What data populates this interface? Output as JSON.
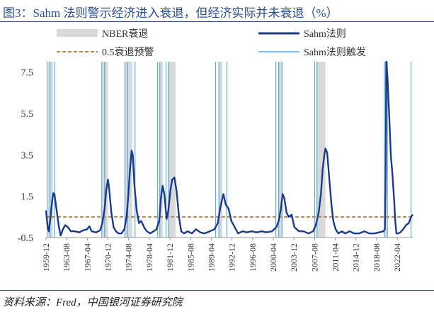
{
  "title": "图3：Sahm 法则警示经济进入衰退，但经济实际并未衰退（%）",
  "source": "资料来源：Fred，中国银河证券研究院",
  "colors": {
    "title": "#2b4f91",
    "recession_band": "#d9d9d9",
    "sahm_line": "#1a3a8c",
    "threshold": "#b08a50",
    "trigger": "#5aaee0",
    "axis": "#999999"
  },
  "chart_data": {
    "type": "line",
    "x_range": [
      1959.9,
      2025.0
    ],
    "ylim": [
      -0.5,
      8.0
    ],
    "yticks": [
      -0.5,
      1.5,
      3.5,
      5.5,
      7.5
    ],
    "ytick_labels": [
      "-0.5",
      "1.5",
      "3.5",
      "5.5",
      "7.5"
    ],
    "xtick_labels": [
      "1959-12",
      "1963-08",
      "1967-04",
      "1970-12",
      "1974-08",
      "1978-04",
      "1981-12",
      "1985-08",
      "1989-04",
      "1992-12",
      "1996-08",
      "2000-04",
      "2003-12",
      "2007-08",
      "2011-04",
      "2014-12",
      "2018-08",
      "2022-04"
    ],
    "legend": [
      {
        "key": "nber",
        "label": "NBER衰退"
      },
      {
        "key": "sahm",
        "label": "Sahm法则"
      },
      {
        "key": "threshold",
        "label": "0.5衰退预警"
      },
      {
        "key": "trigger",
        "label": "Sahm法则触发"
      }
    ],
    "threshold": 0.5,
    "recessions": [
      [
        1960.3,
        1961.1
      ],
      [
        1969.9,
        1970.9
      ],
      [
        1973.9,
        1975.2
      ],
      [
        1980.0,
        1980.6
      ],
      [
        1981.5,
        1982.9
      ],
      [
        1990.5,
        1991.2
      ],
      [
        2001.2,
        2001.9
      ],
      [
        2007.9,
        2009.5
      ],
      [
        2020.1,
        2020.4
      ]
    ],
    "triggers": [
      1960.1,
      1960.6,
      1961.4,
      1969.8,
      1970.3,
      1973.9,
      1974.4,
      1975.7,
      1979.7,
      1980.1,
      1981.2,
      1981.7,
      1990.0,
      1990.6,
      1992.0,
      2000.7,
      2001.2,
      2001.8,
      2007.6,
      2008.0,
      2020.0,
      2020.5,
      2024.7
    ],
    "series": [
      {
        "name": "Sahm法则",
        "points": [
          [
            1959.9,
            0.8
          ],
          [
            1960.2,
            0.0
          ],
          [
            1960.4,
            -0.2
          ],
          [
            1960.7,
            0.5
          ],
          [
            1961.0,
            1.3
          ],
          [
            1961.2,
            1.65
          ],
          [
            1961.4,
            1.6
          ],
          [
            1961.8,
            0.8
          ],
          [
            1962.2,
            0.0
          ],
          [
            1962.5,
            -0.4
          ],
          [
            1962.9,
            -0.1
          ],
          [
            1963.3,
            0.1
          ],
          [
            1963.8,
            0.0
          ],
          [
            1964.3,
            -0.2
          ],
          [
            1965.0,
            -0.2
          ],
          [
            1965.8,
            -0.25
          ],
          [
            1966.5,
            -0.15
          ],
          [
            1967.2,
            -0.1
          ],
          [
            1967.6,
            0.05
          ],
          [
            1968.0,
            -0.2
          ],
          [
            1968.8,
            -0.25
          ],
          [
            1969.5,
            -0.15
          ],
          [
            1969.9,
            0.2
          ],
          [
            1970.3,
            0.9
          ],
          [
            1970.6,
            1.8
          ],
          [
            1970.9,
            2.3
          ],
          [
            1971.1,
            1.9
          ],
          [
            1971.5,
            0.7
          ],
          [
            1971.9,
            0.0
          ],
          [
            1972.3,
            -0.2
          ],
          [
            1972.8,
            -0.3
          ],
          [
            1973.3,
            -0.3
          ],
          [
            1973.8,
            -0.1
          ],
          [
            1974.2,
            0.5
          ],
          [
            1974.5,
            1.5
          ],
          [
            1974.8,
            2.8
          ],
          [
            1975.1,
            3.7
          ],
          [
            1975.3,
            3.5
          ],
          [
            1975.6,
            2.0
          ],
          [
            1976.0,
            0.8
          ],
          [
            1976.4,
            0.2
          ],
          [
            1976.8,
            0.3
          ],
          [
            1977.3,
            0.0
          ],
          [
            1977.8,
            -0.2
          ],
          [
            1978.4,
            -0.3
          ],
          [
            1979.0,
            -0.2
          ],
          [
            1979.5,
            -0.1
          ],
          [
            1980.0,
            0.3
          ],
          [
            1980.3,
            1.4
          ],
          [
            1980.6,
            2.0
          ],
          [
            1980.9,
            1.6
          ],
          [
            1981.3,
            0.4
          ],
          [
            1981.6,
            0.8
          ],
          [
            1982.0,
            1.8
          ],
          [
            1982.3,
            2.3
          ],
          [
            1982.7,
            2.4
          ],
          [
            1983.1,
            1.7
          ],
          [
            1983.5,
            0.5
          ],
          [
            1983.9,
            -0.2
          ],
          [
            1984.4,
            -0.3
          ],
          [
            1985.0,
            -0.2
          ],
          [
            1985.8,
            -0.3
          ],
          [
            1986.5,
            -0.1
          ],
          [
            1987.3,
            -0.25
          ],
          [
            1988.0,
            -0.3
          ],
          [
            1989.0,
            -0.2
          ],
          [
            1989.8,
            -0.1
          ],
          [
            1990.4,
            0.2
          ],
          [
            1990.8,
            0.9
          ],
          [
            1991.2,
            1.4
          ],
          [
            1991.4,
            1.6
          ],
          [
            1991.8,
            1.1
          ],
          [
            1992.3,
            0.9
          ],
          [
            1992.8,
            0.3
          ],
          [
            1993.4,
            0.0
          ],
          [
            1994.0,
            -0.3
          ],
          [
            1994.8,
            -0.2
          ],
          [
            1995.5,
            -0.25
          ],
          [
            1996.4,
            -0.2
          ],
          [
            1997.3,
            -0.25
          ],
          [
            1998.2,
            -0.2
          ],
          [
            1999.0,
            -0.25
          ],
          [
            2000.0,
            -0.2
          ],
          [
            2000.8,
            0.0
          ],
          [
            2001.2,
            0.3
          ],
          [
            2001.6,
            0.9
          ],
          [
            2001.9,
            1.6
          ],
          [
            2002.2,
            1.4
          ],
          [
            2002.6,
            0.7
          ],
          [
            2003.0,
            0.5
          ],
          [
            2003.5,
            0.6
          ],
          [
            2004.0,
            0.0
          ],
          [
            2004.8,
            -0.2
          ],
          [
            2005.6,
            -0.2
          ],
          [
            2006.5,
            -0.3
          ],
          [
            2007.3,
            -0.2
          ],
          [
            2007.8,
            0.1
          ],
          [
            2008.3,
            0.7
          ],
          [
            2008.7,
            1.6
          ],
          [
            2009.0,
            2.8
          ],
          [
            2009.3,
            3.5
          ],
          [
            2009.5,
            3.8
          ],
          [
            2009.8,
            3.6
          ],
          [
            2010.2,
            2.3
          ],
          [
            2010.6,
            1.0
          ],
          [
            2010.9,
            0.3
          ],
          [
            2011.3,
            -0.1
          ],
          [
            2011.8,
            -0.3
          ],
          [
            2012.4,
            -0.2
          ],
          [
            2013.0,
            -0.3
          ],
          [
            2013.8,
            -0.2
          ],
          [
            2014.6,
            -0.3
          ],
          [
            2015.5,
            -0.3
          ],
          [
            2016.4,
            -0.2
          ],
          [
            2017.3,
            -0.3
          ],
          [
            2018.2,
            -0.3
          ],
          [
            2019.0,
            -0.25
          ],
          [
            2019.8,
            -0.2
          ],
          [
            2020.05,
            -0.1
          ],
          [
            2020.2,
            3.0
          ],
          [
            2020.3,
            8.0
          ],
          [
            2020.5,
            7.3
          ],
          [
            2020.8,
            5.5
          ],
          [
            2021.1,
            3.5
          ],
          [
            2021.4,
            2.5
          ],
          [
            2021.7,
            1.3
          ],
          [
            2021.9,
            0.3
          ],
          [
            2022.1,
            -0.3
          ],
          [
            2022.4,
            -0.3
          ],
          [
            2022.8,
            -0.25
          ],
          [
            2023.3,
            -0.1
          ],
          [
            2023.8,
            0.1
          ],
          [
            2024.3,
            0.2
          ],
          [
            2024.7,
            0.5
          ],
          [
            2025.0,
            0.6
          ]
        ]
      }
    ]
  }
}
